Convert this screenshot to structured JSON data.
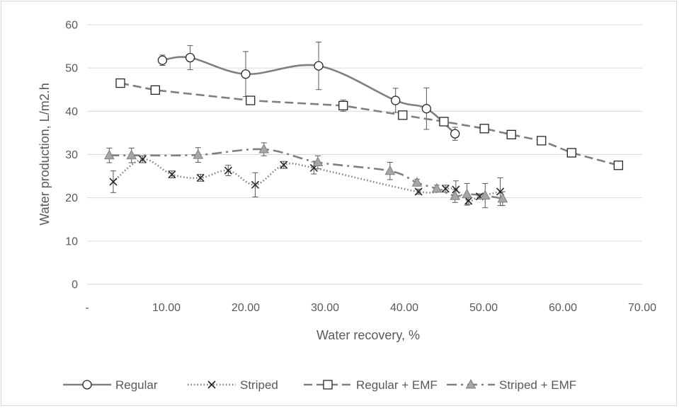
{
  "chart_data": {
    "type": "scatter",
    "title": "",
    "xlabel": "Water recovery, %",
    "ylabel": "Water production, L/m2.h",
    "xlim": [
      0,
      70
    ],
    "ylim": [
      0,
      60
    ],
    "x_ticks": [
      0,
      10,
      20,
      30,
      40,
      50,
      60,
      70
    ],
    "x_tick_labels": [
      "-",
      "10.00",
      "20.00",
      "30.00",
      "40.00",
      "50.00",
      "60.00",
      "70.00"
    ],
    "y_ticks": [
      0,
      10,
      20,
      30,
      40,
      50,
      60
    ],
    "y_tick_labels": [
      "0",
      "10",
      "20",
      "30",
      "40",
      "50",
      "60"
    ],
    "grid": "horizontal",
    "legend_position": "bottom",
    "series": [
      {
        "name": "Regular",
        "marker": "circle",
        "line_style": "solid",
        "smooth": true,
        "color": "#7f7f7f",
        "x": [
          9.5,
          13.0,
          20.0,
          29.2,
          38.9,
          42.8,
          46.4
        ],
        "y": [
          51.8,
          52.4,
          48.6,
          50.5,
          42.5,
          40.6,
          34.8
        ],
        "err": [
          1.2,
          2.8,
          5.2,
          5.5,
          2.8,
          4.8,
          1.5
        ]
      },
      {
        "name": "Striped",
        "marker": "x",
        "line_style": "dotted",
        "smooth": true,
        "color": "#7f7f7f",
        "x": [
          3.3,
          7.0,
          10.7,
          14.3,
          17.8,
          21.2,
          24.8,
          28.6,
          41.8,
          45.2,
          46.5,
          48.1,
          49.5,
          52.1
        ],
        "y": [
          23.7,
          28.9,
          25.4,
          24.6,
          26.3,
          23.0,
          27.6,
          26.9,
          21.4,
          22.1,
          21.9,
          19.3,
          20.3,
          21.4
        ],
        "err": [
          2.5,
          0.8,
          0.8,
          0.8,
          1.2,
          2.8,
          0.8,
          1.4,
          0.6,
          0.8,
          2.0,
          0.8,
          0.6,
          3.2
        ]
      },
      {
        "name": "Regular + EMF",
        "marker": "square",
        "line_style": "dashed",
        "smooth": false,
        "color": "#7f7f7f",
        "x": [
          4.2,
          8.6,
          20.6,
          32.3,
          39.8,
          45.0,
          50.1,
          53.5,
          57.3,
          61.1,
          67.0
        ],
        "y": [
          46.5,
          44.9,
          42.5,
          41.3,
          39.1,
          37.6,
          36.0,
          34.6,
          33.2,
          30.4,
          27.5
        ],
        "err": [
          0.4,
          0.4,
          0.4,
          1.3,
          0.6,
          0.6,
          0.4,
          0.4,
          0.4,
          0.4,
          0.4
        ]
      },
      {
        "name": "Striped + EMF",
        "marker": "triangle",
        "line_style": "dash-dot",
        "smooth": true,
        "color": "#7f7f7f",
        "x": [
          2.8,
          5.6,
          14.0,
          22.3,
          29.1,
          38.2,
          41.6,
          44.1,
          46.4,
          47.9,
          50.2,
          52.4
        ],
        "y": [
          29.8,
          29.8,
          29.9,
          31.2,
          28.2,
          26.2,
          23.5,
          22.1,
          20.4,
          20.8,
          20.5,
          19.8
        ],
        "err": [
          1.7,
          1.7,
          1.7,
          1.5,
          1.5,
          2.0,
          0.8,
          0.8,
          1.5,
          2.5,
          2.8,
          1.6
        ]
      }
    ]
  }
}
